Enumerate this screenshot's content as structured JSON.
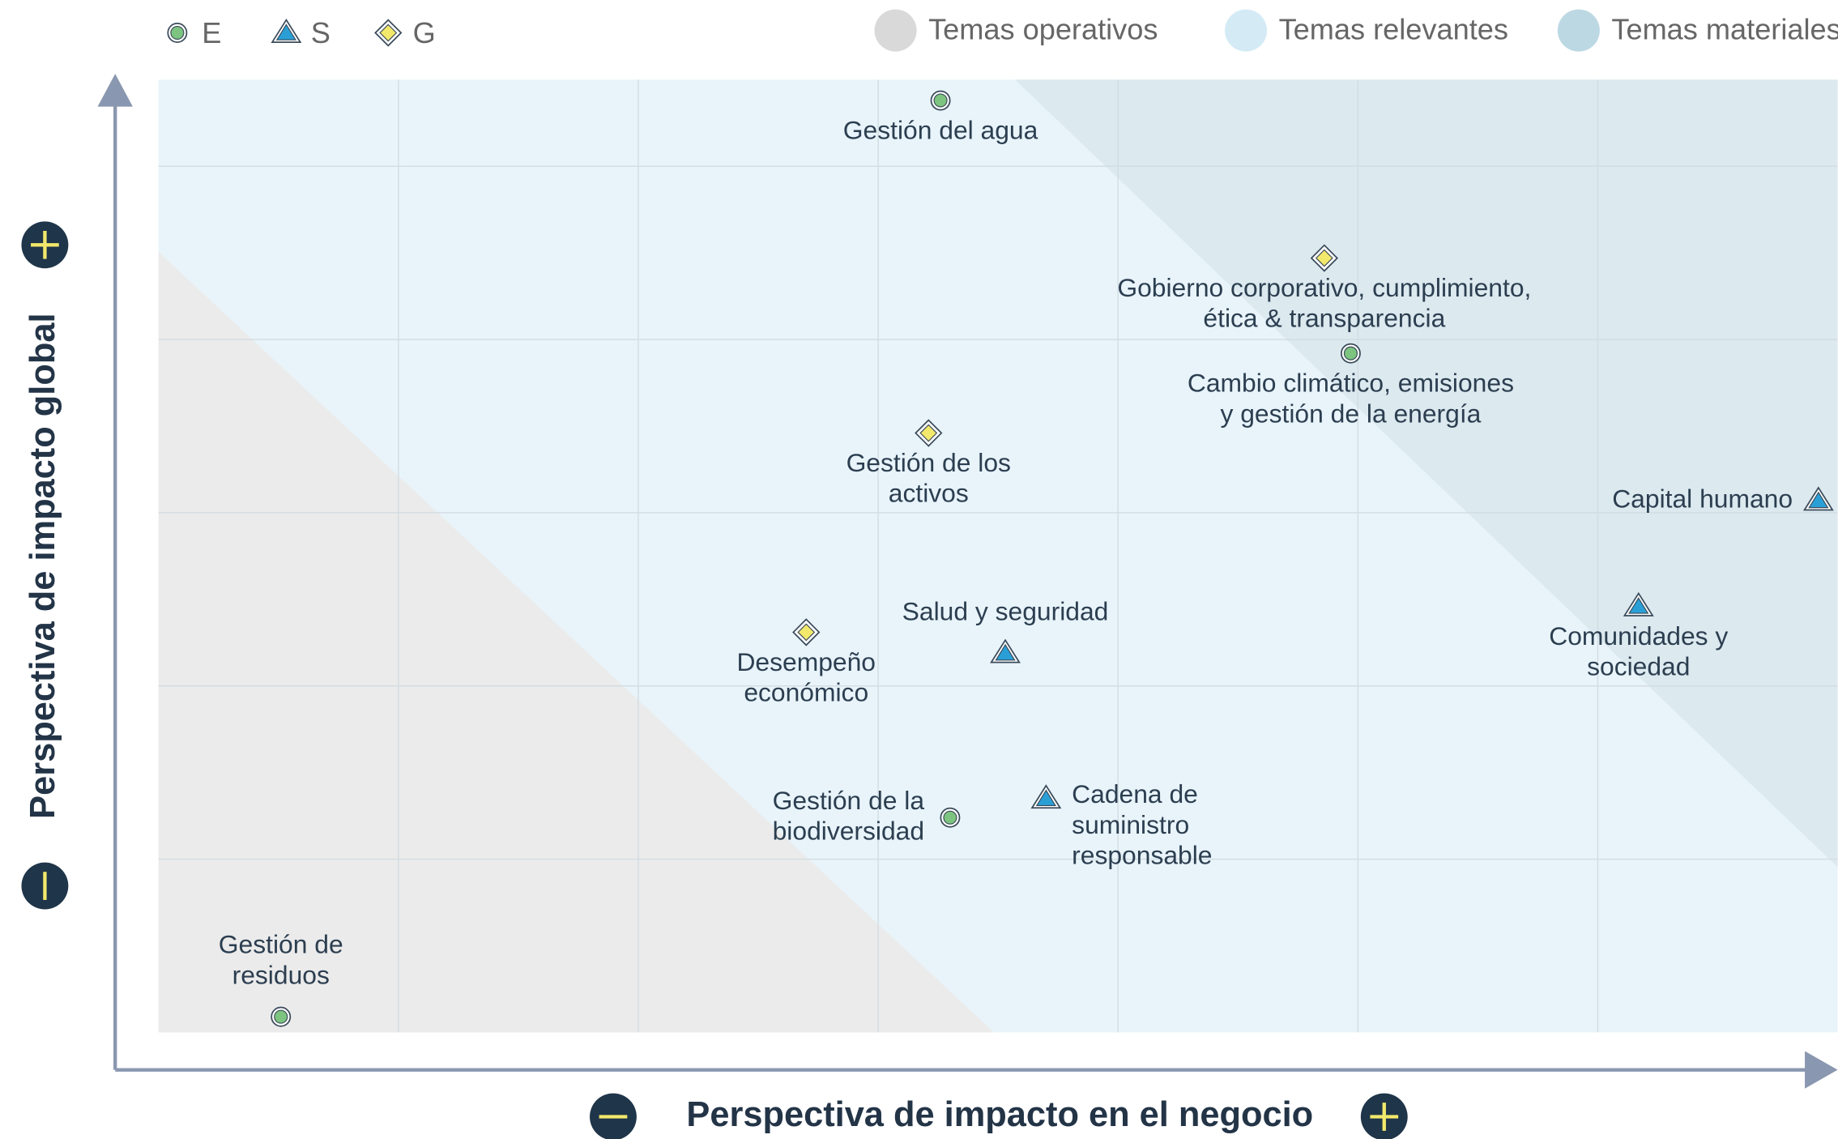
{
  "chart_data": {
    "type": "scatter",
    "x_label": "Perspectiva de impacto en el negocio",
    "y_label": "Perspectiva de impacto global",
    "xlim": [
      0,
      7
    ],
    "ylim": [
      0,
      5.5
    ],
    "xticks": [
      1,
      2,
      3,
      4,
      5,
      6
    ],
    "yticks": [
      1,
      2,
      3,
      4,
      5
    ],
    "grid": true,
    "regions": [
      {
        "name": "Temas operativos",
        "color": "#d9d9d9"
      },
      {
        "name": "Temas relevantes",
        "color": "#d4ebf6"
      },
      {
        "name": "Temas materiales",
        "color": "#bcd8e3"
      }
    ],
    "series": [
      {
        "name": "E",
        "color": "#7cc47f",
        "marker": "circle",
        "x": [
          3.26,
          4.97,
          3.3,
          0.51
        ],
        "y": [
          5.38,
          3.92,
          1.24,
          0.09
        ],
        "labels": [
          [
            "Gestión del agua"
          ],
          [
            "Cambio climático, emisiones",
            "y gestión de la energía"
          ],
          [
            "Gestión de la",
            "biodiversidad"
          ],
          [
            "Gestión de",
            "residuos"
          ]
        ],
        "label_positions": [
          "below",
          "below",
          "left",
          "above"
        ]
      },
      {
        "name": "S",
        "color": "#2a9fd6",
        "marker": "triangle",
        "x": [
          6.92,
          6.17,
          3.53,
          3.7
        ],
        "y": [
          3.07,
          2.46,
          2.19,
          1.35
        ],
        "labels": [
          [
            "Capital humano"
          ],
          [
            "Comunidades y",
            "sociedad"
          ],
          [
            "Salud y seguridad"
          ],
          [
            "Cadena de",
            "suministro",
            "responsable"
          ]
        ],
        "label_positions": [
          "left",
          "below",
          "above",
          "right"
        ]
      },
      {
        "name": "G",
        "color": "#f2e86b",
        "marker": "diamond",
        "x": [
          4.86,
          3.21,
          2.7
        ],
        "y": [
          4.47,
          3.46,
          2.31
        ],
        "labels": [
          [
            "Gobierno corporativo, cumplimiento,",
            "ética & transparencia"
          ],
          [
            "Gestión de los",
            "activos"
          ],
          [
            "Desempeño",
            "económico"
          ]
        ],
        "label_positions": [
          "below",
          "below",
          "below"
        ]
      }
    ]
  }
}
